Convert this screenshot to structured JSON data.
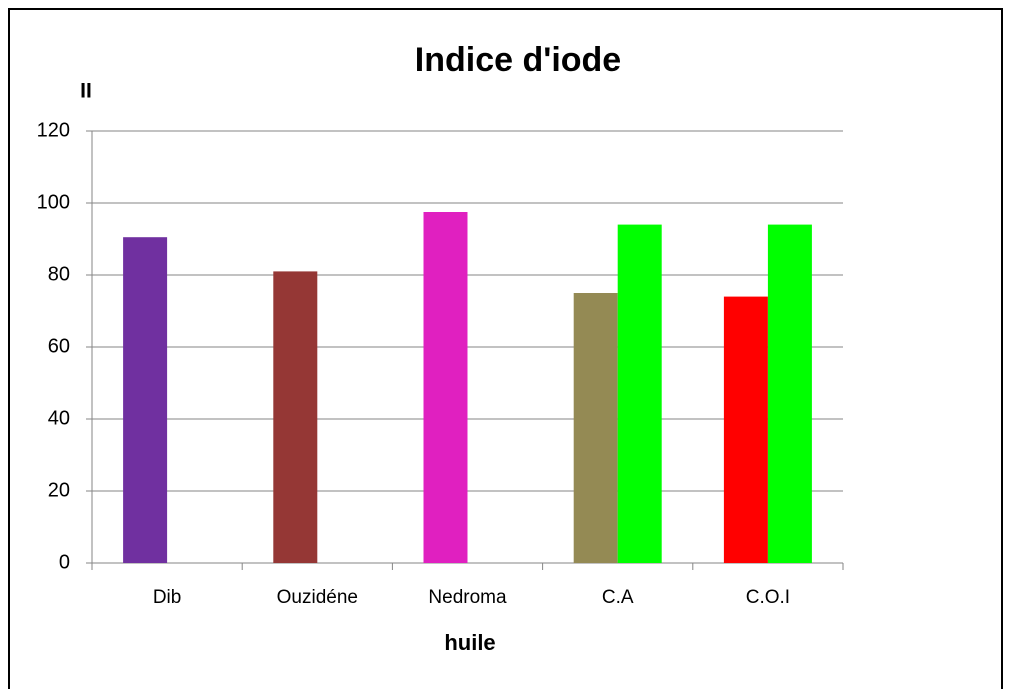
{
  "chart_data": {
    "type": "bar",
    "title": "Indice  d'iode",
    "y_label": "II",
    "x_label": "huile",
    "categories": [
      "Dib",
      "Ouzidéne",
      "Nedroma",
      "C.A",
      "C.O.I"
    ],
    "series": [
      {
        "colors": [
          "#7030a0",
          "#953735",
          "#e020c0",
          "#948a54",
          "#ff0000"
        ],
        "values": [
          90.5,
          81,
          97.5,
          75,
          74
        ]
      },
      {
        "colors": [
          "#00ff00",
          "#00ff00",
          "#00ff00",
          "#00ff00",
          "#00ff00"
        ],
        "values": [
          null,
          null,
          null,
          94,
          94
        ]
      }
    ],
    "ylim": [
      0,
      120
    ],
    "yticks": [
      0,
      20,
      40,
      60,
      80,
      100,
      120
    ],
    "grid": true
  }
}
